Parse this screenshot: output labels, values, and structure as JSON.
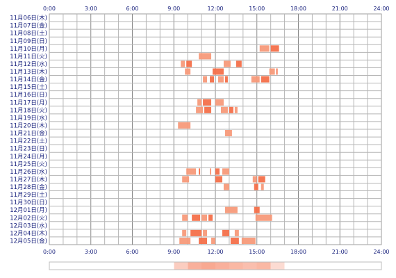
{
  "chart_data": {
    "type": "timeline",
    "x_tick_labels": [
      "0:00",
      "3:00",
      "6:00",
      "9:00",
      "12:00",
      "15:00",
      "18:00",
      "21:00",
      "24:00"
    ],
    "xlim_hours": [
      0,
      24
    ],
    "grid": true,
    "bar_color": "#f4704a",
    "bar_color_light": "#f79a7a",
    "grid_color": "#9e9e9e",
    "label_color": "#1a237e",
    "rows": [
      {
        "date": "11月06日(木)",
        "intervals": []
      },
      {
        "date": "11月07日(金)",
        "intervals": []
      },
      {
        "date": "11月08日(土)",
        "intervals": []
      },
      {
        "date": "11月09日(日)",
        "intervals": []
      },
      {
        "date": "11月10日(月)",
        "intervals": [
          [
            15.2,
            15.9
          ],
          [
            16.0,
            16.6
          ]
        ]
      },
      {
        "date": "11月11日(火)",
        "intervals": [
          [
            10.8,
            11.7
          ]
        ]
      },
      {
        "date": "11月12日(水)",
        "intervals": [
          [
            9.5,
            9.8
          ],
          [
            9.9,
            10.3
          ],
          [
            12.6,
            13.1
          ],
          [
            13.5,
            13.9
          ]
        ]
      },
      {
        "date": "11月13日(木)",
        "intervals": [
          [
            9.8,
            10.2
          ],
          [
            11.8,
            12.6
          ],
          [
            15.9,
            16.3
          ],
          [
            16.4,
            16.5
          ]
        ]
      },
      {
        "date": "11月14日(金)",
        "intervals": [
          [
            11.1,
            11.4
          ],
          [
            11.6,
            11.9
          ],
          [
            12.2,
            12.6
          ],
          [
            12.7,
            12.9
          ],
          [
            14.6,
            15.2
          ],
          [
            15.3,
            15.9
          ]
        ]
      },
      {
        "date": "11月15日(土)",
        "intervals": []
      },
      {
        "date": "11月16日(日)",
        "intervals": []
      },
      {
        "date": "11月17日(月)",
        "intervals": [
          [
            10.7,
            11.0
          ],
          [
            11.1,
            11.7
          ],
          [
            12.0,
            12.6
          ]
        ]
      },
      {
        "date": "11月18日(火)",
        "intervals": [
          [
            10.6,
            11.1
          ],
          [
            11.2,
            11.7
          ],
          [
            12.4,
            12.9
          ],
          [
            13.0,
            13.3
          ],
          [
            13.4,
            13.6
          ]
        ]
      },
      {
        "date": "11月19日(水)",
        "intervals": []
      },
      {
        "date": "11月20日(木)",
        "intervals": [
          [
            9.3,
            10.2
          ]
        ]
      },
      {
        "date": "11月21日(金)",
        "intervals": [
          [
            12.7,
            13.2
          ]
        ]
      },
      {
        "date": "11月22日(土)",
        "intervals": []
      },
      {
        "date": "11月23日(日)",
        "intervals": []
      },
      {
        "date": "11月24日(月)",
        "intervals": []
      },
      {
        "date": "11月25日(火)",
        "intervals": []
      },
      {
        "date": "11月26日(水)",
        "intervals": [
          [
            9.9,
            10.6
          ],
          [
            10.8,
            10.9
          ],
          [
            11.6,
            11.7
          ],
          [
            12.0,
            12.3
          ],
          [
            12.5,
            13.0
          ]
        ]
      },
      {
        "date": "11月27日(木)",
        "intervals": [
          [
            9.6,
            10.1
          ],
          [
            12.0,
            12.5
          ],
          [
            14.7,
            15.0
          ],
          [
            15.1,
            15.6
          ]
        ]
      },
      {
        "date": "11月28日(金)",
        "intervals": [
          [
            12.6,
            13.0
          ],
          [
            14.8,
            15.1
          ],
          [
            15.3,
            15.5
          ]
        ]
      },
      {
        "date": "11月29日(土)",
        "intervals": []
      },
      {
        "date": "11月30日(日)",
        "intervals": []
      },
      {
        "date": "12月01日(月)",
        "intervals": [
          [
            12.7,
            13.6
          ],
          [
            14.8,
            15.2
          ]
        ]
      },
      {
        "date": "12月02日(火)",
        "intervals": [
          [
            9.6,
            10.0
          ],
          [
            10.3,
            10.9
          ],
          [
            11.0,
            11.4
          ],
          [
            11.5,
            11.8
          ],
          [
            14.9,
            16.1
          ]
        ]
      },
      {
        "date": "12月03日(水)",
        "intervals": []
      },
      {
        "date": "12月04日(木)",
        "intervals": [
          [
            9.6,
            9.9
          ],
          [
            10.2,
            11.0
          ],
          [
            11.1,
            11.4
          ],
          [
            12.5,
            13.0
          ],
          [
            13.4,
            13.7
          ]
        ]
      },
      {
        "date": "12月05日(金)",
        "intervals": [
          [
            9.4,
            10.2
          ],
          [
            10.8,
            11.4
          ],
          [
            11.7,
            12.0
          ],
          [
            13.1,
            13.7
          ],
          [
            13.9,
            14.9
          ]
        ]
      }
    ],
    "summary_strip": {
      "hour_weights": [
        0,
        0,
        0,
        0,
        0,
        0,
        0,
        0,
        0,
        0.35,
        0.55,
        0.6,
        0.55,
        0.5,
        0.45,
        0.5,
        0.25,
        0,
        0,
        0,
        0,
        0,
        0,
        0
      ]
    }
  }
}
